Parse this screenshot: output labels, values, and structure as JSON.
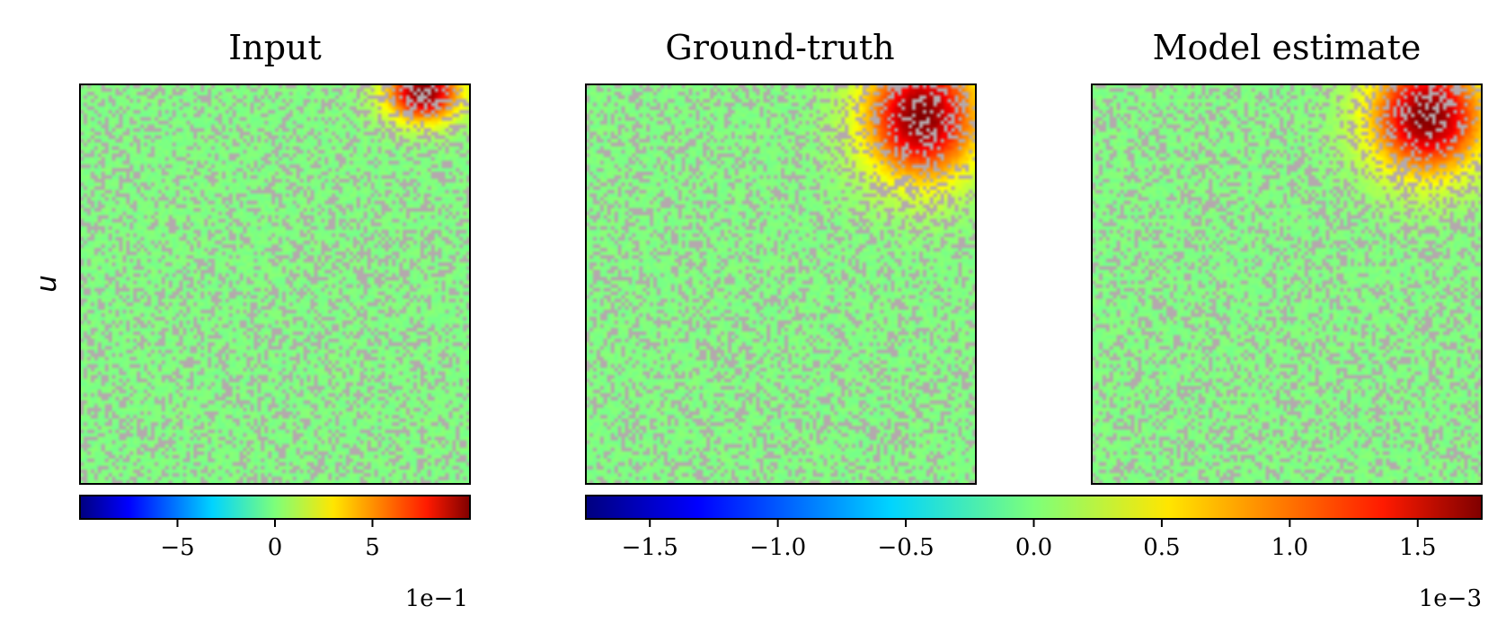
{
  "figure": {
    "row_label": "u"
  },
  "chart_data": [
    {
      "type": "heatmap",
      "title": "Input",
      "grid": false,
      "noise": "grey speckle dropout on a near-zero field",
      "blob": {
        "center": [
          0.88,
          0.02
        ],
        "sigma": [
          0.065,
          0.05
        ],
        "peak": 1.0
      },
      "colorbar": {
        "colormap": "jet",
        "range": [
          -1.0,
          1.0
        ],
        "ticks": [
          -0.5,
          0.0,
          0.5
        ],
        "tick_labels": [
          "−5",
          "0",
          "5"
        ],
        "offset_label": "1e−1"
      }
    },
    {
      "type": "heatmap",
      "title": "Ground-truth",
      "grid": false,
      "noise": "grey speckle dropout on a near-zero field",
      "blob": {
        "center": [
          0.86,
          0.08
        ],
        "sigma": [
          0.1,
          0.11
        ],
        "peak": 1.75
      },
      "shared_colorbar": 0
    },
    {
      "type": "heatmap",
      "title": "Model estimate",
      "grid": false,
      "noise": "grey speckle dropout on a near-zero field",
      "blob": {
        "center": [
          0.86,
          0.08
        ],
        "sigma": [
          0.1,
          0.1
        ],
        "peak": 1.75
      },
      "shared_colorbar": 0
    }
  ],
  "shared_colorbars": [
    {
      "colormap": "jet",
      "range": [
        -1.75,
        1.75
      ],
      "ticks": [
        -1.5,
        -1.0,
        -0.5,
        0.0,
        0.5,
        1.0,
        1.5
      ],
      "tick_labels": [
        "−1.5",
        "−1.0",
        "−0.5",
        "0.0",
        "0.5",
        "1.0",
        "1.5"
      ],
      "offset_label": "1e−3"
    }
  ],
  "colors": {
    "mask": "#b4a9ad",
    "frame": "#000000"
  }
}
